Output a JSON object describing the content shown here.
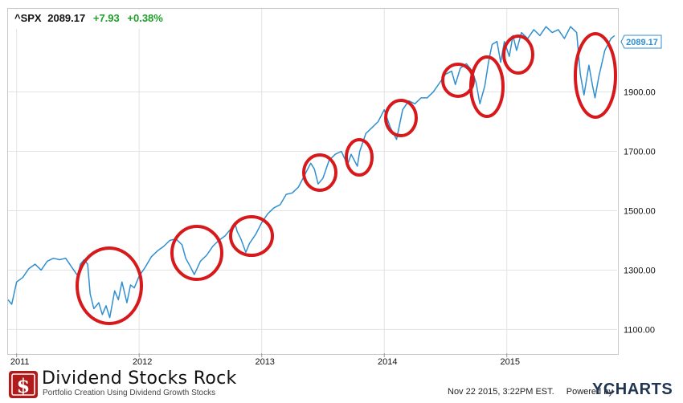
{
  "header": {
    "ticker": "^SPX",
    "price": "2089.17",
    "change": "+7.93",
    "change_pct": "+0.38%"
  },
  "price_tag": "2089.17",
  "brand": {
    "title": "Dividend Stocks Rock",
    "subtitle": "Portfolio Creation Using Dividend Growth Stocks"
  },
  "footer": {
    "timestamp": "Nov 22 2015, 3:22PM EST.",
    "powered_by": "Powered by",
    "provider": "YCHARTS"
  },
  "colors": {
    "line": "#2f8fd0",
    "circle": "#d7191c",
    "positive": "#1e9e2a",
    "tag": "#2f8fd0"
  },
  "icons": {
    "logo": "dollar-sign-icon"
  },
  "chart_data": {
    "type": "line",
    "title": "",
    "xlabel": "",
    "ylabel": "",
    "xlim": [
      2010.93,
      2015.9
    ],
    "ylim": [
      1020,
      2180
    ],
    "x_ticks": [
      2011,
      2012,
      2013,
      2014,
      2015
    ],
    "x_tick_labels": [
      "2011",
      "2012",
      "2013",
      "2014",
      "2015"
    ],
    "y_ticks": [
      1100,
      1300,
      1500,
      1700,
      1900
    ],
    "y_tick_labels": [
      "1100.00",
      "1300.00",
      "1500.00",
      "1700.00",
      "1900.00"
    ],
    "grid": true,
    "series": [
      {
        "values": [
          [
            2010.93,
            1200
          ],
          [
            2010.96,
            1185
          ],
          [
            2011.0,
            1260
          ],
          [
            2011.05,
            1275
          ],
          [
            2011.1,
            1305
          ],
          [
            2011.15,
            1320
          ],
          [
            2011.2,
            1300
          ],
          [
            2011.25,
            1330
          ],
          [
            2011.3,
            1340
          ],
          [
            2011.35,
            1335
          ],
          [
            2011.4,
            1340
          ],
          [
            2011.45,
            1310
          ],
          [
            2011.5,
            1280
          ],
          [
            2011.52,
            1320
          ],
          [
            2011.55,
            1335
          ],
          [
            2011.58,
            1320
          ],
          [
            2011.6,
            1220
          ],
          [
            2011.63,
            1170
          ],
          [
            2011.67,
            1190
          ],
          [
            2011.7,
            1150
          ],
          [
            2011.73,
            1180
          ],
          [
            2011.76,
            1140
          ],
          [
            2011.8,
            1230
          ],
          [
            2011.83,
            1200
          ],
          [
            2011.86,
            1260
          ],
          [
            2011.9,
            1190
          ],
          [
            2011.93,
            1250
          ],
          [
            2011.96,
            1240
          ],
          [
            2012.0,
            1280
          ],
          [
            2012.05,
            1310
          ],
          [
            2012.1,
            1345
          ],
          [
            2012.15,
            1365
          ],
          [
            2012.2,
            1380
          ],
          [
            2012.25,
            1400
          ],
          [
            2012.3,
            1405
          ],
          [
            2012.35,
            1385
          ],
          [
            2012.38,
            1340
          ],
          [
            2012.42,
            1310
          ],
          [
            2012.45,
            1285
          ],
          [
            2012.5,
            1330
          ],
          [
            2012.55,
            1350
          ],
          [
            2012.6,
            1380
          ],
          [
            2012.65,
            1400
          ],
          [
            2012.7,
            1415
          ],
          [
            2012.75,
            1440
          ],
          [
            2012.78,
            1460
          ],
          [
            2012.8,
            1430
          ],
          [
            2012.83,
            1405
          ],
          [
            2012.87,
            1360
          ],
          [
            2012.9,
            1390
          ],
          [
            2012.95,
            1420
          ],
          [
            2013.0,
            1460
          ],
          [
            2013.05,
            1490
          ],
          [
            2013.1,
            1510
          ],
          [
            2013.15,
            1520
          ],
          [
            2013.2,
            1555
          ],
          [
            2013.25,
            1560
          ],
          [
            2013.3,
            1580
          ],
          [
            2013.35,
            1620
          ],
          [
            2013.4,
            1660
          ],
          [
            2013.43,
            1640
          ],
          [
            2013.46,
            1590
          ],
          [
            2013.5,
            1610
          ],
          [
            2013.55,
            1670
          ],
          [
            2013.6,
            1690
          ],
          [
            2013.65,
            1700
          ],
          [
            2013.7,
            1655
          ],
          [
            2013.73,
            1690
          ],
          [
            2013.78,
            1650
          ],
          [
            2013.8,
            1700
          ],
          [
            2013.85,
            1760
          ],
          [
            2013.9,
            1780
          ],
          [
            2013.95,
            1800
          ],
          [
            2014.0,
            1840
          ],
          [
            2014.05,
            1780
          ],
          [
            2014.1,
            1740
          ],
          [
            2014.15,
            1840
          ],
          [
            2014.2,
            1870
          ],
          [
            2014.25,
            1860
          ],
          [
            2014.3,
            1880
          ],
          [
            2014.35,
            1880
          ],
          [
            2014.4,
            1900
          ],
          [
            2014.45,
            1930
          ],
          [
            2014.5,
            1960
          ],
          [
            2014.55,
            1970
          ],
          [
            2014.58,
            1925
          ],
          [
            2014.62,
            1980
          ],
          [
            2014.67,
            1995
          ],
          [
            2014.72,
            1970
          ],
          [
            2014.75,
            1930
          ],
          [
            2014.78,
            1860
          ],
          [
            2014.82,
            1920
          ],
          [
            2014.85,
            2000
          ],
          [
            2014.88,
            2060
          ],
          [
            2014.92,
            2070
          ],
          [
            2014.95,
            2000
          ],
          [
            2014.98,
            2070
          ],
          [
            2015.02,
            2020
          ],
          [
            2015.05,
            2090
          ],
          [
            2015.08,
            2040
          ],
          [
            2015.12,
            2100
          ],
          [
            2015.17,
            2080
          ],
          [
            2015.22,
            2110
          ],
          [
            2015.27,
            2090
          ],
          [
            2015.32,
            2120
          ],
          [
            2015.37,
            2100
          ],
          [
            2015.42,
            2110
          ],
          [
            2015.47,
            2080
          ],
          [
            2015.52,
            2120
          ],
          [
            2015.57,
            2100
          ],
          [
            2015.6,
            1960
          ],
          [
            2015.63,
            1890
          ],
          [
            2015.67,
            1990
          ],
          [
            2015.7,
            1920
          ],
          [
            2015.72,
            1880
          ],
          [
            2015.75,
            1950
          ],
          [
            2015.8,
            2040
          ],
          [
            2015.85,
            2080
          ],
          [
            2015.88,
            2090
          ]
        ]
      }
    ]
  }
}
